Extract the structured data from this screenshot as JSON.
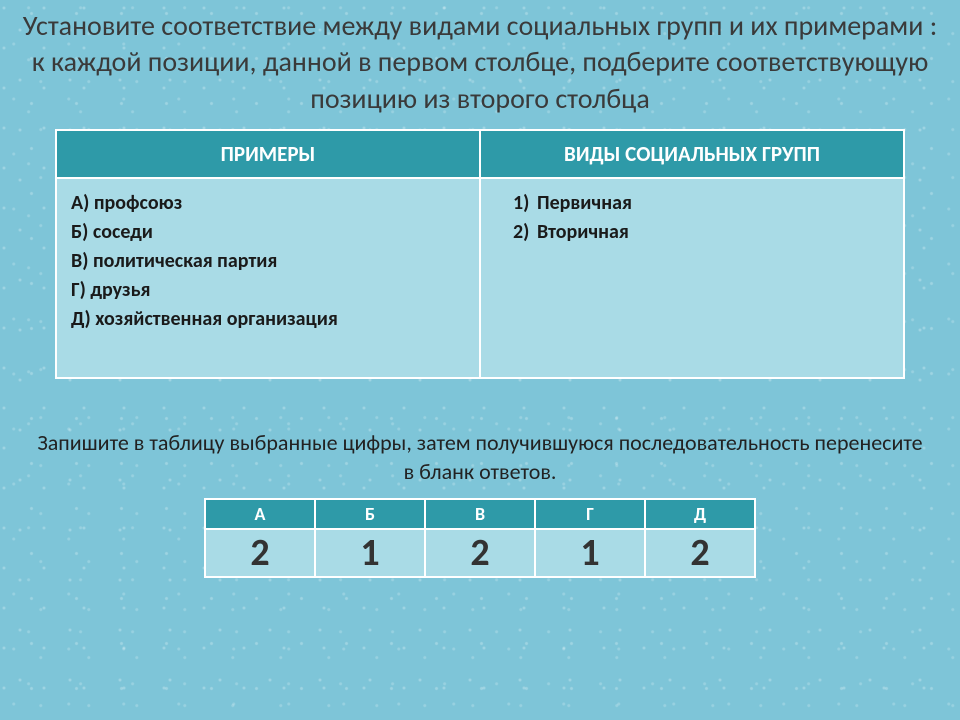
{
  "title": "Установите соответствие между видами социальных групп и их примерами : к каждой позиции, данной в первом столбце, подберите соответствующую позицию из второго столбца",
  "mainTable": {
    "headers": {
      "left": "ПРИМЕРЫ",
      "right": "ВИДЫ СОЦИАЛЬНЫХ ГРУПП"
    },
    "examples": {
      "a": "А) профсоюз",
      "b": "Б) соседи",
      "c": "В) политическая партия",
      "d": "Г) друзья",
      "e": "Д) хозяйственная организация"
    },
    "types": {
      "t1": {
        "num": "1)",
        "label": "Первичная"
      },
      "t2": {
        "num": "2)",
        "label": "Вторичная"
      }
    }
  },
  "instruction": "Запишите в таблицу выбранные цифры, затем получившуюся последовательность перенесите в бланк ответов.",
  "answerTable": {
    "headers": {
      "a": "А",
      "b": "Б",
      "c": "В",
      "d": "Г",
      "e": "Д"
    },
    "answers": {
      "a": "2",
      "b": "1",
      "c": "2",
      "d": "1",
      "e": "2"
    }
  },
  "colors": {
    "background": "#7ec5d8",
    "tableHeader": "#2e9aa8",
    "tableCell": "#a9dbe6",
    "border": "#ffffff",
    "text": "#1a1a1a"
  }
}
